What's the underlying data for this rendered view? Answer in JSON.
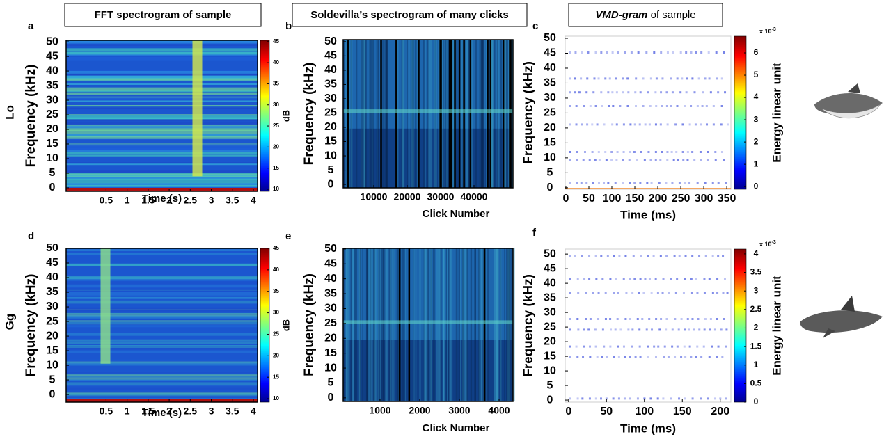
{
  "chart_data": [
    {
      "type": "spectrogram",
      "panel": "a",
      "title": "FFT spectrogram of sample",
      "row_label": "Lo",
      "y_label": "Frequency (kHz)",
      "x_label": "Time (s)",
      "xlim": [
        -0.45,
        4.1
      ],
      "xticks": [
        0.5,
        1,
        1.5,
        2,
        2.5,
        3,
        3.5,
        4
      ],
      "ylim": [
        -1.2,
        50.5
      ],
      "yticks": [
        0,
        5,
        10,
        15,
        20,
        25,
        30,
        35,
        40,
        45,
        50
      ],
      "colorbar": {
        "label": "dB",
        "lim": [
          9.5,
          45.3
        ],
        "ticks": [
          10,
          15,
          20,
          25,
          30,
          35,
          40,
          45
        ]
      }
    },
    {
      "type": "spectrogram",
      "panel": "b",
      "title": "Soldevilla’s spectrogram of many clicks",
      "y_label": "Frequency (kHz)",
      "x_label": "Click Number",
      "xlim": [
        833,
        51667
      ],
      "xticks": [
        10000,
        20000,
        30000,
        40000
      ],
      "ylim": [
        -1.2,
        50.7
      ],
      "yticks": [
        0,
        5,
        10,
        15,
        20,
        25,
        30,
        35,
        40,
        45,
        50
      ]
    },
    {
      "type": "vmdgram",
      "panel": "c",
      "title_italic": "VMD-gram",
      "title": "of sample",
      "y_label": "Frequency (kHz)",
      "x_label": "Time (ms)",
      "xlim": [
        -1.5,
        359
      ],
      "xticks": [
        0,
        50,
        100,
        150,
        200,
        250,
        300,
        350
      ],
      "ylim": [
        -0.5,
        50.7
      ],
      "yticks": [
        0,
        5,
        10,
        15,
        20,
        25,
        30,
        35,
        40,
        45,
        50
      ],
      "colorbar": {
        "label": "Energy linear unit",
        "exponent_base": "x 10",
        "exponent": "-3",
        "lim": [
          -0.12,
          6.75
        ],
        "ticks": [
          0,
          1,
          2,
          3,
          4,
          5,
          6
        ]
      }
    },
    {
      "type": "spectrogram",
      "panel": "d",
      "row_label": "Gg",
      "y_label": "Frequency (kHz)",
      "x_label": "Time (s)",
      "xlim": [
        -0.45,
        4.1
      ],
      "xticks": [
        0.5,
        1,
        1.5,
        2,
        2.5,
        3,
        3.5,
        4
      ],
      "ylim": [
        -2.6,
        50
      ],
      "yticks": [
        0,
        5,
        10,
        15,
        20,
        25,
        30,
        35,
        40,
        45,
        50
      ],
      "colorbar": {
        "label": "dB",
        "lim": [
          9.2,
          45
        ],
        "ticks": [
          10,
          15,
          20,
          25,
          30,
          35,
          40,
          45
        ]
      }
    },
    {
      "type": "spectrogram",
      "panel": "e",
      "y_label": "Frequency (kHz)",
      "x_label": "Click Number",
      "xlim": [
        70,
        4351
      ],
      "xticks": [
        1000,
        2000,
        3000,
        4000
      ],
      "ylim": [
        -1.2,
        50.2
      ],
      "yticks": [
        0,
        5,
        10,
        15,
        20,
        25,
        30,
        35,
        40,
        45,
        50
      ]
    },
    {
      "type": "vmdgram",
      "panel": "f",
      "y_label": "Frequency (kHz)",
      "x_label": "Time (ms)",
      "xlim": [
        -4.4,
        214
      ],
      "xticks": [
        0,
        50,
        100,
        150,
        200
      ],
      "ylim": [
        -0.7,
        51.7
      ],
      "yticks": [
        0,
        5,
        10,
        15,
        20,
        25,
        30,
        35,
        40,
        45,
        50
      ],
      "colorbar": {
        "label": "Energy linear unit",
        "exponent_base": "x 10",
        "exponent": "-3",
        "lim": [
          0,
          4.13
        ],
        "ticks": [
          0,
          0.5,
          1,
          1.5,
          2,
          2.5,
          3,
          3.5,
          4
        ]
      }
    }
  ]
}
